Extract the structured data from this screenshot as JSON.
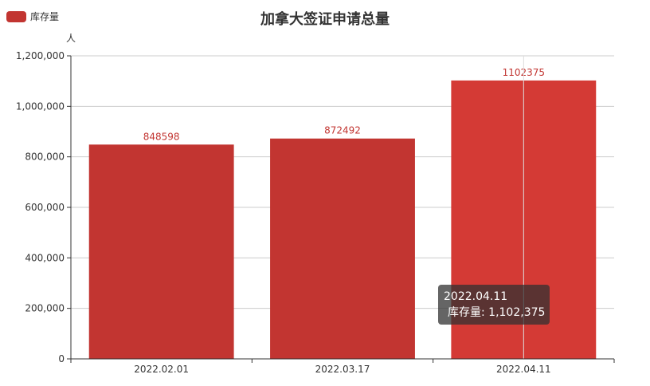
{
  "title": "加拿大签证申请总量",
  "legend": {
    "label": "库存量",
    "color": "#c23531"
  },
  "colors": {
    "bar": "#c23531",
    "bar_hover": "#d43a35",
    "axis": "#333333",
    "grid": "#cccccc"
  },
  "chart_data": {
    "type": "bar",
    "title": "加拿大签证申请总量",
    "xlabel": "",
    "ylabel": "人",
    "categories": [
      "2022.02.01",
      "2022.03.17",
      "2022.04.11"
    ],
    "series": [
      {
        "name": "库存量",
        "values": [
          848598,
          872492,
          1102375
        ]
      }
    ],
    "data_labels": [
      "848598",
      "872492",
      "1102375"
    ],
    "ylim": [
      0,
      1200000
    ],
    "yticks": [
      0,
      200000,
      400000,
      600000,
      800000,
      1000000,
      1200000
    ],
    "ytick_labels": [
      "0",
      "200,000",
      "400,000",
      "600,000",
      "800,000",
      "1,000,000",
      "1,200,000"
    ],
    "grid": true,
    "legend_position": "top-left"
  },
  "tooltip": {
    "category": "2022.04.11",
    "series_label": "库存量: 1,102,375"
  }
}
